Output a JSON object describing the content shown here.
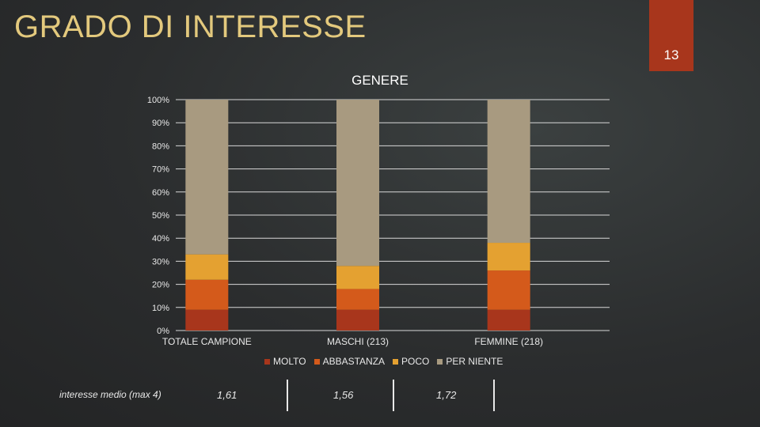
{
  "slide": {
    "title": "GRADO DI INTERESSE",
    "page_number": "13"
  },
  "chart_data": {
    "type": "bar",
    "stacked": "percent",
    "title": "GENERE",
    "categories": [
      "TOTALE CAMPIONE",
      "MASCHI (213)",
      "FEMMINE (218)"
    ],
    "series": [
      {
        "name": "MOLTO",
        "values": [
          9,
          9,
          9
        ],
        "color": "#a8361c"
      },
      {
        "name": "ABBASTANZA",
        "values": [
          13,
          9,
          17
        ],
        "color": "#d45a1b"
      },
      {
        "name": "POCO",
        "values": [
          11,
          10,
          12
        ],
        "color": "#e4a131"
      },
      {
        "name": "PER NIENTE",
        "values": [
          67,
          72,
          62
        ],
        "color": "#a89a80"
      }
    ],
    "yticks": [
      "0%",
      "10%",
      "20%",
      "30%",
      "40%",
      "50%",
      "60%",
      "70%",
      "80%",
      "90%",
      "100%"
    ],
    "ylim": [
      0,
      100
    ],
    "legend_position": "bottom",
    "grid": true
  },
  "average": {
    "label": "interesse medio (max 4)",
    "values": [
      "1,61",
      "1,56",
      "1,72"
    ]
  }
}
